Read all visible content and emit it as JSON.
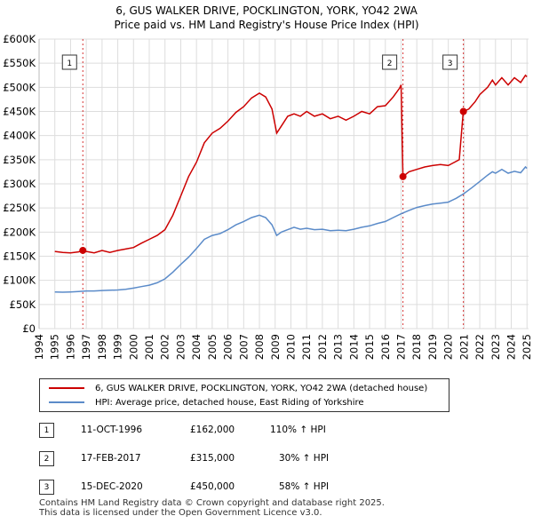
{
  "title_line1": "6, GUS WALKER DRIVE, POCKLINGTON, YORK, YO42 2WA",
  "title_line2": "Price paid vs. HM Land Registry's House Price Index (HPI)",
  "colors": {
    "property": "#cc0000",
    "hpi": "#5b8bc9",
    "sale_vline": "#cc0000"
  },
  "chart_data": {
    "type": "line",
    "xlim": [
      1994,
      2025.1
    ],
    "ylim": [
      0,
      600000
    ],
    "x_ticks": [
      "1994",
      "1995",
      "1996",
      "1997",
      "1998",
      "1999",
      "2000",
      "2001",
      "2002",
      "2003",
      "2004",
      "2005",
      "2006",
      "2007",
      "2008",
      "2009",
      "2010",
      "2011",
      "2012",
      "2013",
      "2014",
      "2015",
      "2016",
      "2017",
      "2018",
      "2019",
      "2020",
      "2021",
      "2022",
      "2023",
      "2024",
      "2025"
    ],
    "y_ticks": [
      {
        "value": 0,
        "label": "£0"
      },
      {
        "value": 50000,
        "label": "£50K"
      },
      {
        "value": 100000,
        "label": "£100K"
      },
      {
        "value": 150000,
        "label": "£150K"
      },
      {
        "value": 200000,
        "label": "£200K"
      },
      {
        "value": 250000,
        "label": "£250K"
      },
      {
        "value": 300000,
        "label": "£300K"
      },
      {
        "value": 350000,
        "label": "£350K"
      },
      {
        "value": 400000,
        "label": "£400K"
      },
      {
        "value": 450000,
        "label": "£450K"
      },
      {
        "value": 500000,
        "label": "£500K"
      },
      {
        "value": 550000,
        "label": "£550K"
      },
      {
        "value": 600000,
        "label": "£600K"
      }
    ],
    "series": [
      {
        "name": "6, GUS WALKER DRIVE, POCKLINGTON, YORK, YO42 2WA (detached house)",
        "color": "#cc0000",
        "points": [
          [
            1995.0,
            160000
          ],
          [
            1995.5,
            158000
          ],
          [
            1996.0,
            157000
          ],
          [
            1996.5,
            159000
          ],
          [
            1996.78,
            162000
          ],
          [
            1997.0,
            160000
          ],
          [
            1997.5,
            157000
          ],
          [
            1998.0,
            162000
          ],
          [
            1998.5,
            158000
          ],
          [
            1999.0,
            162000
          ],
          [
            1999.5,
            165000
          ],
          [
            2000.0,
            168000
          ],
          [
            2000.5,
            177000
          ],
          [
            2001.0,
            185000
          ],
          [
            2001.5,
            193000
          ],
          [
            2002.0,
            205000
          ],
          [
            2002.5,
            235000
          ],
          [
            2003.0,
            275000
          ],
          [
            2003.5,
            315000
          ],
          [
            2004.0,
            345000
          ],
          [
            2004.5,
            385000
          ],
          [
            2005.0,
            405000
          ],
          [
            2005.5,
            415000
          ],
          [
            2006.0,
            430000
          ],
          [
            2006.5,
            448000
          ],
          [
            2007.0,
            460000
          ],
          [
            2007.5,
            478000
          ],
          [
            2008.0,
            488000
          ],
          [
            2008.4,
            480000
          ],
          [
            2008.8,
            455000
          ],
          [
            2009.1,
            405000
          ],
          [
            2009.4,
            420000
          ],
          [
            2009.8,
            440000
          ],
          [
            2010.2,
            445000
          ],
          [
            2010.6,
            440000
          ],
          [
            2011.0,
            450000
          ],
          [
            2011.5,
            440000
          ],
          [
            2012.0,
            445000
          ],
          [
            2012.5,
            435000
          ],
          [
            2013.0,
            440000
          ],
          [
            2013.5,
            432000
          ],
          [
            2014.0,
            440000
          ],
          [
            2014.5,
            450000
          ],
          [
            2015.0,
            445000
          ],
          [
            2015.5,
            460000
          ],
          [
            2016.0,
            462000
          ],
          [
            2016.5,
            480000
          ],
          [
            2016.9,
            498000
          ],
          [
            2017.0,
            505000
          ],
          [
            2017.12,
            315000
          ],
          [
            2017.5,
            325000
          ],
          [
            2018.0,
            330000
          ],
          [
            2018.5,
            335000
          ],
          [
            2019.0,
            338000
          ],
          [
            2019.5,
            340000
          ],
          [
            2020.0,
            338000
          ],
          [
            2020.4,
            345000
          ],
          [
            2020.7,
            350000
          ],
          [
            2020.95,
            450000
          ],
          [
            2021.3,
            455000
          ],
          [
            2021.7,
            470000
          ],
          [
            2022.0,
            485000
          ],
          [
            2022.5,
            500000
          ],
          [
            2022.8,
            515000
          ],
          [
            2023.0,
            505000
          ],
          [
            2023.4,
            520000
          ],
          [
            2023.8,
            505000
          ],
          [
            2024.2,
            520000
          ],
          [
            2024.6,
            510000
          ],
          [
            2024.9,
            525000
          ],
          [
            2025.0,
            522000
          ]
        ]
      },
      {
        "name": "HPI: Average price, detached house, East Riding of Yorkshire",
        "color": "#5b8bc9",
        "points": [
          [
            1995.0,
            76000
          ],
          [
            1995.5,
            75500
          ],
          [
            1996.0,
            76000
          ],
          [
            1996.5,
            77000
          ],
          [
            1997.0,
            78000
          ],
          [
            1997.5,
            78000
          ],
          [
            1998.0,
            79000
          ],
          [
            1998.5,
            79500
          ],
          [
            1999.0,
            80000
          ],
          [
            1999.5,
            81500
          ],
          [
            2000.0,
            84000
          ],
          [
            2000.5,
            87000
          ],
          [
            2001.0,
            90000
          ],
          [
            2001.5,
            95000
          ],
          [
            2002.0,
            103000
          ],
          [
            2002.5,
            117000
          ],
          [
            2003.0,
            133000
          ],
          [
            2003.5,
            148000
          ],
          [
            2004.0,
            166000
          ],
          [
            2004.5,
            185000
          ],
          [
            2005.0,
            193000
          ],
          [
            2005.5,
            197000
          ],
          [
            2006.0,
            205000
          ],
          [
            2006.5,
            215000
          ],
          [
            2007.0,
            222000
          ],
          [
            2007.5,
            230000
          ],
          [
            2008.0,
            235000
          ],
          [
            2008.4,
            230000
          ],
          [
            2008.8,
            215000
          ],
          [
            2009.1,
            193000
          ],
          [
            2009.4,
            200000
          ],
          [
            2009.8,
            205000
          ],
          [
            2010.2,
            210000
          ],
          [
            2010.6,
            206000
          ],
          [
            2011.0,
            208000
          ],
          [
            2011.5,
            205000
          ],
          [
            2012.0,
            206000
          ],
          [
            2012.5,
            203000
          ],
          [
            2013.0,
            204000
          ],
          [
            2013.5,
            203000
          ],
          [
            2014.0,
            206000
          ],
          [
            2014.5,
            210000
          ],
          [
            2015.0,
            213000
          ],
          [
            2015.5,
            218000
          ],
          [
            2016.0,
            222000
          ],
          [
            2016.5,
            230000
          ],
          [
            2017.0,
            238000
          ],
          [
            2017.5,
            245000
          ],
          [
            2018.0,
            251000
          ],
          [
            2018.5,
            255000
          ],
          [
            2019.0,
            258000
          ],
          [
            2019.5,
            260000
          ],
          [
            2020.0,
            262000
          ],
          [
            2020.5,
            270000
          ],
          [
            2021.0,
            280000
          ],
          [
            2021.5,
            292000
          ],
          [
            2022.0,
            305000
          ],
          [
            2022.5,
            318000
          ],
          [
            2022.8,
            325000
          ],
          [
            2023.0,
            322000
          ],
          [
            2023.4,
            330000
          ],
          [
            2023.8,
            322000
          ],
          [
            2024.2,
            326000
          ],
          [
            2024.6,
            323000
          ],
          [
            2024.9,
            335000
          ],
          [
            2025.0,
            332000
          ]
        ]
      }
    ],
    "sales": [
      {
        "label": "1",
        "x": 1996.78,
        "value": 162000
      },
      {
        "label": "2",
        "x": 2017.12,
        "value": 315000
      },
      {
        "label": "3",
        "x": 2020.96,
        "value": 450000
      }
    ]
  },
  "legend": {
    "property": "6, GUS WALKER DRIVE, POCKLINGTON, YORK, YO42 2WA (detached house)",
    "hpi": "HPI: Average price, detached house, East Riding of Yorkshire"
  },
  "sales_table": [
    {
      "num": "1",
      "date": "11-OCT-1996",
      "price": "£162,000",
      "pct": "110% ↑ HPI"
    },
    {
      "num": "2",
      "date": "17-FEB-2017",
      "price": "£315,000",
      "pct": "30% ↑ HPI"
    },
    {
      "num": "3",
      "date": "15-DEC-2020",
      "price": "£450,000",
      "pct": "58% ↑ HPI"
    }
  ],
  "footer_line1": "Contains HM Land Registry data © Crown copyright and database right 2025.",
  "footer_line2": "This data is licensed under the Open Government Licence v3.0."
}
